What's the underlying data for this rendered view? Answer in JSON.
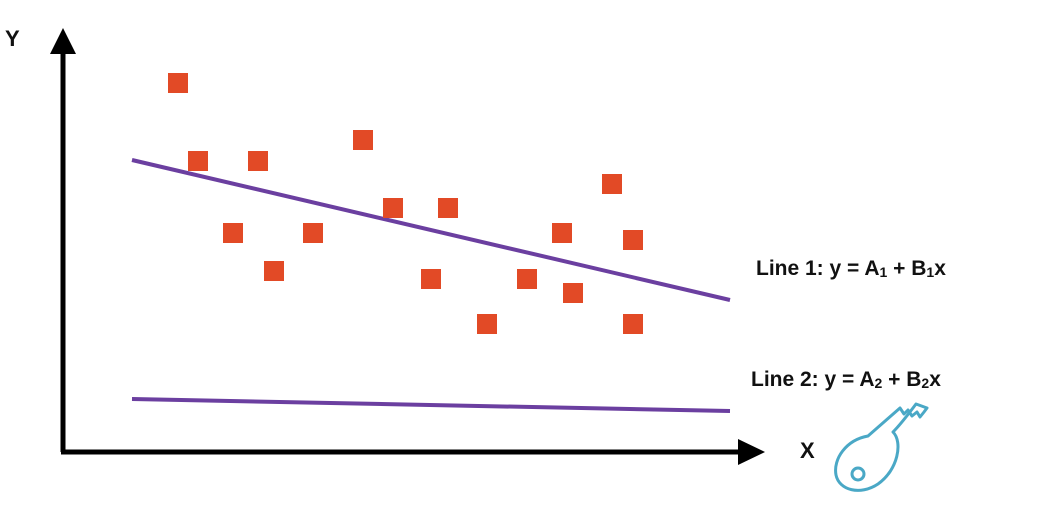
{
  "axes": {
    "y_label": "Y",
    "x_label": "X"
  },
  "lines": [
    {
      "label_prefix": "Line 1: y = A",
      "sub1": "1",
      "mid": " + B",
      "sub2": "1",
      "suffix": "x"
    },
    {
      "label_prefix": "Line 2: y = A",
      "sub1": "2",
      "mid": " + B",
      "sub2": "2",
      "suffix": "x"
    }
  ],
  "colors": {
    "axis": "#000000",
    "points": "#e24a26",
    "lines": "#6b3fa0",
    "key_icon": "#4aa8c6"
  },
  "icons": {
    "key": "key-icon"
  }
}
